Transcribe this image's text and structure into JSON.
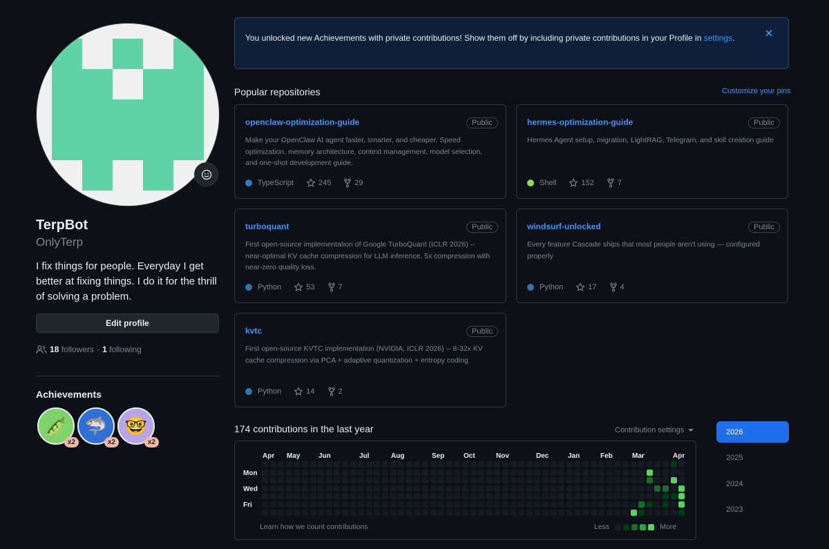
{
  "profile": {
    "name": "TerpBot",
    "login": "OnlyTerp",
    "bio": "I fix things for people. Everyday I get better at fixing things. I do it for the thrill of solving a problem.",
    "edit_label": "Edit profile",
    "followers_count": "18",
    "followers_label": "followers",
    "separator": "·",
    "following_count": "1",
    "following_label": "following",
    "avatar_color": "#5fd3a5"
  },
  "achievements": {
    "title": "Achievements",
    "items": [
      {
        "icon": "pair-extraordinaire-icon",
        "glyph": "🫛",
        "count": "x2",
        "color": "#7fd36b"
      },
      {
        "icon": "shark-icon",
        "glyph": "🦈",
        "count": "x2",
        "color": "#2f6fd6"
      },
      {
        "icon": "quickdraw-icon",
        "glyph": "🤓",
        "count": "x2",
        "color": "#b9a4e8"
      }
    ]
  },
  "banner": {
    "text": "You unlocked new Achievements with private contributions! Show them off by including private contributions in your Profile in ",
    "link": "settings",
    "tail": "."
  },
  "repos": {
    "title": "Popular repositories",
    "customize": "Customize your pins",
    "items": [
      {
        "name": "openclaw-optimization-guide",
        "visibility": "Public",
        "desc": "Make your OpenClaw AI agent faster, smarter, and cheaper. Speed optimization, memory architecture, context management, model selection, and one-shot development guide.",
        "lang": "TypeScript",
        "lang_color": "#3178c6",
        "stars": "245",
        "forks": "29"
      },
      {
        "name": "hermes-optimization-guide",
        "visibility": "Public",
        "desc": "Hermes Agent setup, migration, LightRAG, Telegram, and skill creation guide",
        "lang": "Shell",
        "lang_color": "#89e051",
        "stars": "152",
        "forks": "7"
      },
      {
        "name": "turboquant",
        "visibility": "Public",
        "desc": "First open-source implementation of Google TurboQuant (ICLR 2026) -- near-optimal KV cache compression for LLM inference. 5x compression with near-zero quality loss.",
        "lang": "Python",
        "lang_color": "#3572A5",
        "stars": "53",
        "forks": "7"
      },
      {
        "name": "windsurf-unlocked",
        "visibility": "Public",
        "desc": "Every feature Cascade ships that most people aren't using — configured properly",
        "lang": "Python",
        "lang_color": "#3572A5",
        "stars": "17",
        "forks": "4"
      },
      {
        "name": "kvtc",
        "visibility": "Public",
        "desc": "First open-source KVTC implementation (NVIDIA, ICLR 2026) -- 8-32x KV cache compression via PCA + adaptive quantization + entropy coding",
        "lang": "Python",
        "lang_color": "#3572A5",
        "stars": "14",
        "forks": "2"
      }
    ]
  },
  "contributions": {
    "title": "174 contributions in the last year",
    "settings": "Contribution settings",
    "months": [
      "Apr",
      "May",
      "Jun",
      "Jul",
      "Aug",
      "Sep",
      "Oct",
      "Nov",
      "Dec",
      "Jan",
      "Feb",
      "Mar",
      "Apr"
    ],
    "days": [
      "Mon",
      "Wed",
      "Fri"
    ],
    "learn": "Learn how we count contributions",
    "less": "Less",
    "more": "More",
    "years": [
      "2026",
      "2025",
      "2024",
      "2023"
    ],
    "active_year": "2026",
    "palette": [
      "#161b22",
      "#033a16",
      "#196c2e",
      "#2ea043",
      "#56d364"
    ],
    "weeks": 53,
    "active_cells": [
      {
        "week": 47,
        "day": 6,
        "level": 4
      },
      {
        "week": 48,
        "day": 5,
        "level": 2
      },
      {
        "week": 48,
        "day": 6,
        "level": 1
      },
      {
        "week": 49,
        "day": 1,
        "level": 4
      },
      {
        "week": 49,
        "day": 2,
        "level": 2
      },
      {
        "week": 49,
        "day": 5,
        "level": 1
      },
      {
        "week": 50,
        "day": 3,
        "level": 2
      },
      {
        "week": 51,
        "day": 3,
        "level": 2
      },
      {
        "week": 52,
        "day": 0,
        "level": 1
      },
      {
        "week": 51,
        "day": 4,
        "level": 1
      },
      {
        "week": 52,
        "day": 2,
        "level": 4
      },
      {
        "week": 53,
        "day": 3,
        "level": 4
      },
      {
        "week": 53,
        "day": 4,
        "level": 4
      },
      {
        "week": 53,
        "day": 5,
        "level": 4
      },
      {
        "week": 53,
        "day": 6,
        "level": 1
      },
      {
        "week": 52,
        "day": 4,
        "level": 1
      },
      {
        "week": 51,
        "day": 5,
        "level": 1
      }
    ]
  }
}
